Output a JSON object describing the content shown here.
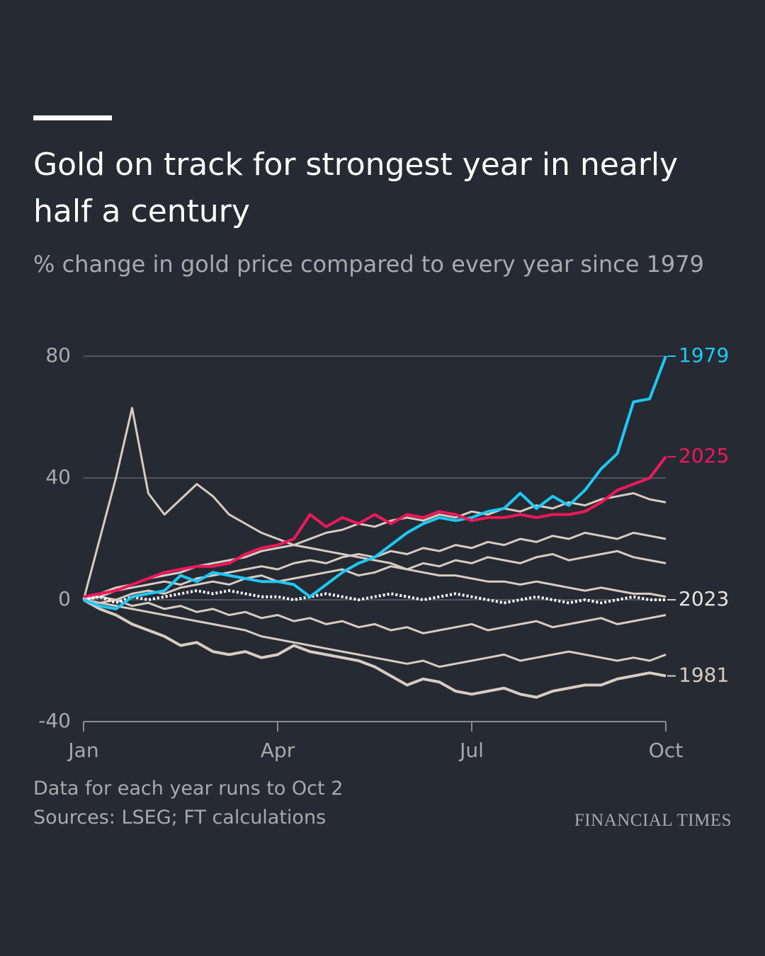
{
  "chart_data": {
    "type": "line",
    "title": "Gold on track for strongest year in nearly half a century",
    "subtitle": "% change in gold price compared to every year since 1979",
    "notes": [
      "Data for each year runs to Oct 2",
      "Sources: LSEG; FT calculations"
    ],
    "brand": "FINANCIAL TIMES",
    "x": [
      0,
      0.25,
      0.5,
      0.75,
      1,
      1.25,
      1.5,
      1.75,
      2,
      2.25,
      2.5,
      2.75,
      3,
      3.25,
      3.5,
      3.75,
      4,
      4.25,
      4.5,
      4.75,
      5,
      5.25,
      5.5,
      5.75,
      6,
      6.25,
      6.5,
      6.75,
      7,
      7.25,
      7.5,
      7.75,
      8,
      8.25,
      8.5,
      8.75,
      9
    ],
    "xlim": [
      0,
      9
    ],
    "xticks": [
      {
        "value": 0,
        "label": "Jan"
      },
      {
        "value": 3,
        "label": "Apr"
      },
      {
        "value": 6,
        "label": "Jul"
      },
      {
        "value": 9,
        "label": "Oct"
      }
    ],
    "ylim": [
      -40,
      80
    ],
    "yticks": [
      -40,
      0,
      40,
      80
    ],
    "grid": true,
    "series": [
      {
        "color": "#d8ccc2",
        "values": [
          0,
          20,
          40,
          63,
          35,
          28,
          33,
          38,
          34,
          28,
          25,
          22,
          20,
          18,
          17,
          16,
          15,
          14,
          13,
          12,
          10,
          9,
          8,
          8,
          7,
          6,
          6,
          5,
          6,
          5,
          4,
          3,
          4,
          3,
          2,
          2,
          1
        ]
      },
      {
        "color": "#d8ccc2",
        "values": [
          0,
          2,
          4,
          5,
          7,
          8,
          9,
          11,
          12,
          13,
          14,
          16,
          17,
          18,
          20,
          22,
          23,
          25,
          24,
          26,
          27,
          26,
          28,
          27,
          29,
          28,
          30,
          29,
          31,
          30,
          32,
          31,
          33,
          34,
          35,
          33,
          32
        ]
      },
      {
        "color": "#d8ccc2",
        "values": [
          0,
          1,
          3,
          4,
          5,
          6,
          5,
          7,
          8,
          9,
          10,
          11,
          10,
          12,
          13,
          12,
          14,
          15,
          14,
          16,
          15,
          17,
          16,
          18,
          17,
          19,
          18,
          20,
          19,
          21,
          20,
          22,
          21,
          20,
          22,
          21,
          20
        ]
      },
      {
        "color": "#d8ccc2",
        "values": [
          0,
          -1,
          -2,
          -3,
          -4,
          -5,
          -6,
          -7,
          -8,
          -9,
          -10,
          -12,
          -13,
          -14,
          -15,
          -16,
          -17,
          -18,
          -19,
          -20,
          -21,
          -20,
          -22,
          -21,
          -20,
          -19,
          -18,
          -20,
          -19,
          -18,
          -17,
          -18,
          -19,
          -20,
          -19,
          -20,
          -18
        ]
      },
      {
        "color": "#d8ccc2",
        "values": [
          0,
          1,
          0,
          2,
          3,
          2,
          4,
          5,
          6,
          5,
          7,
          8,
          6,
          7,
          8,
          9,
          10,
          8,
          9,
          11,
          10,
          12,
          11,
          13,
          12,
          14,
          13,
          12,
          14,
          15,
          13,
          14,
          15,
          16,
          14,
          13,
          12
        ]
      },
      {
        "color": "#d8ccc2",
        "values": [
          0,
          -1,
          0,
          -2,
          -1,
          -3,
          -2,
          -4,
          -3,
          -5,
          -4,
          -6,
          -5,
          -7,
          -6,
          -8,
          -7,
          -9,
          -8,
          -10,
          -9,
          -11,
          -10,
          -9,
          -8,
          -10,
          -9,
          -8,
          -7,
          -9,
          -8,
          -7,
          -6,
          -8,
          -7,
          -6,
          -5
        ]
      },
      {
        "name": "1981",
        "color": "#d8ccc2",
        "values": [
          0,
          -3,
          -5,
          -8,
          -10,
          -12,
          -15,
          -14,
          -17,
          -18,
          -17,
          -19,
          -18,
          -15,
          -17,
          -18,
          -19,
          -20,
          -22,
          -25,
          -28,
          -26,
          -27,
          -30,
          -31,
          -30,
          -29,
          -31,
          -32,
          -30,
          -29,
          -28,
          -28,
          -26,
          -25,
          -24,
          -25
        ]
      },
      {
        "name": "2023",
        "color": "#ffffff",
        "style": "dotted",
        "values": [
          0,
          1,
          -1,
          1,
          0,
          1,
          2,
          3,
          2,
          3,
          2,
          1,
          1,
          0,
          1,
          2,
          1,
          0,
          1,
          2,
          1,
          0,
          1,
          2,
          1,
          0,
          -1,
          0,
          1,
          0,
          -1,
          0,
          -1,
          0,
          1,
          0,
          0
        ]
      },
      {
        "name": "1979",
        "color": "#1ec8f5",
        "values": [
          0,
          -2,
          -3,
          1,
          2,
          3,
          8,
          6,
          9,
          8,
          7,
          6,
          6,
          5,
          1,
          5,
          9,
          12,
          14,
          18,
          22,
          25,
          27,
          26,
          27,
          29,
          30,
          35,
          30,
          34,
          31,
          36,
          43,
          48,
          65,
          66,
          80
        ]
      },
      {
        "name": "2025",
        "color": "#f0185a",
        "values": [
          1,
          2,
          3,
          5,
          7,
          9,
          10,
          11,
          11,
          12,
          15,
          17,
          18,
          20,
          28,
          24,
          27,
          25,
          28,
          25,
          28,
          27,
          29,
          28,
          26,
          27,
          27,
          28,
          27,
          28,
          28,
          29,
          32,
          36,
          38,
          40,
          47
        ]
      }
    ]
  }
}
